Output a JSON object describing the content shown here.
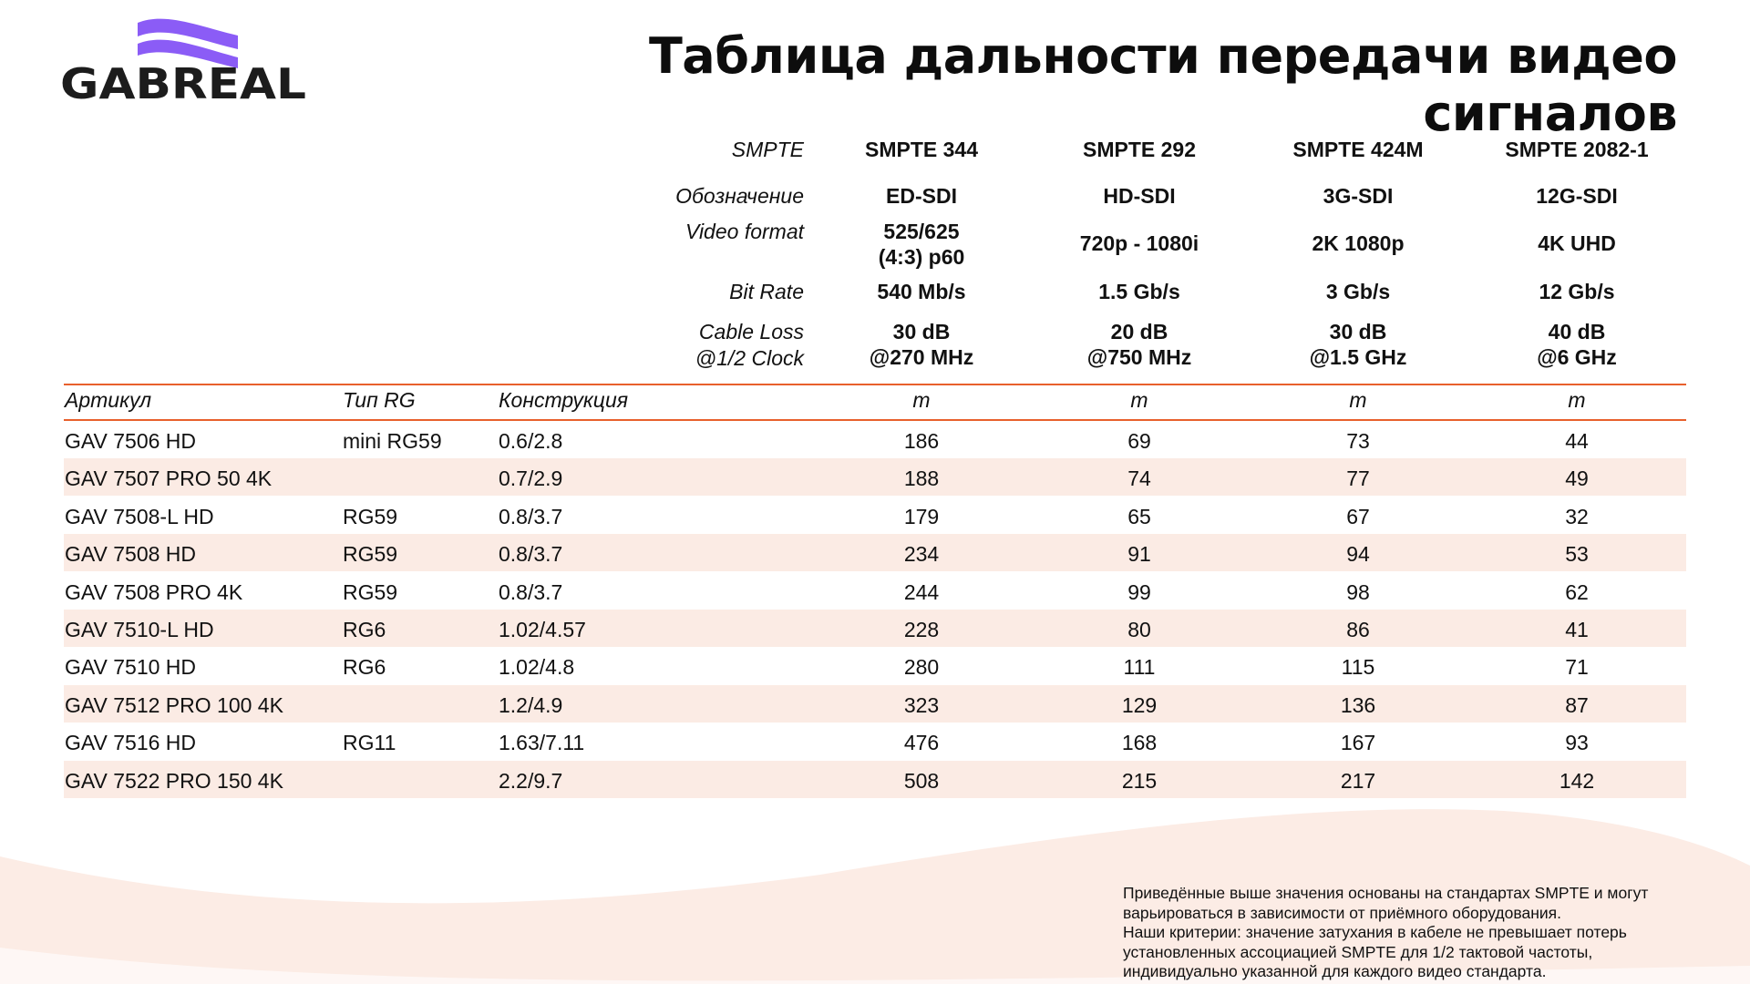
{
  "brand": {
    "name": "GABREAL",
    "wave_color": "#8b5cf6"
  },
  "title": "Таблица дальности передачи видео сигналов",
  "accent": "#e8602c",
  "row_tint": "#fbebe4",
  "header_rows": [
    {
      "label": "SMPTE",
      "values": [
        "SMPTE 344",
        "SMPTE 292",
        "SMPTE 424M",
        "SMPTE 2082-1"
      ]
    },
    {
      "label": "Обозначение",
      "values": [
        "ED-SDI",
        "HD-SDI",
        "3G-SDI",
        "12G-SDI"
      ]
    },
    {
      "label": "Video format",
      "values": [
        "525/625\n(4:3) p60",
        "720p - 1080i",
        "2K 1080p",
        "4K UHD"
      ]
    },
    {
      "label": "Bit Rate",
      "values": [
        "540 Mb/s",
        "1.5 Gb/s",
        "3 Gb/s",
        "12 Gb/s"
      ]
    },
    {
      "label": "Cable Loss\n@1/2 Clock",
      "values": [
        "30 dB\n@270 MHz",
        "20 dB\n@750 MHz",
        "30 dB\n@1.5 GHz",
        "40 dB\n@6 GHz"
      ]
    }
  ],
  "columns": {
    "article": "Артикул",
    "rg": "Тип RG",
    "construction": "Конструкция",
    "units": [
      "m",
      "m",
      "m",
      "m"
    ]
  },
  "rows": [
    {
      "article": "GAV 7506 HD",
      "rg": "mini RG59",
      "construction": "0.6/2.8",
      "values": [
        "186",
        "69",
        "73",
        "44"
      ]
    },
    {
      "article": "GAV 7507 PRO 50 4K",
      "rg": "",
      "construction": "0.7/2.9",
      "values": [
        "188",
        "74",
        "77",
        "49"
      ]
    },
    {
      "article": "GAV 7508-L HD",
      "rg": "RG59",
      "construction": "0.8/3.7",
      "values": [
        "179",
        "65",
        "67",
        "32"
      ]
    },
    {
      "article": "GAV 7508 HD",
      "rg": "RG59",
      "construction": "0.8/3.7",
      "values": [
        "234",
        "91",
        "94",
        "53"
      ]
    },
    {
      "article": "GAV 7508 PRO 4K",
      "rg": "RG59",
      "construction": "0.8/3.7",
      "values": [
        "244",
        "99",
        "98",
        "62"
      ]
    },
    {
      "article": "GAV 7510-L HD",
      "rg": "RG6",
      "construction": "1.02/4.57",
      "values": [
        "228",
        "80",
        "86",
        "41"
      ]
    },
    {
      "article": "GAV 7510 HD",
      "rg": "RG6",
      "construction": "1.02/4.8",
      "values": [
        "280",
        "111",
        "115",
        "71"
      ]
    },
    {
      "article": "GAV 7512 PRO 100 4K",
      "rg": "",
      "construction": "1.2/4.9",
      "values": [
        "323",
        "129",
        "136",
        "87"
      ]
    },
    {
      "article": "GAV 7516 HD",
      "rg": "RG11",
      "construction": "1.63/7.11",
      "values": [
        "476",
        "168",
        "167",
        "93"
      ]
    },
    {
      "article": "GAV 7522 PRO 150 4K",
      "rg": "",
      "construction": "2.2/9.7",
      "values": [
        "508",
        "215",
        "217",
        "142"
      ]
    }
  ],
  "footer": [
    "Приведённые выше значения основаны на стандартах SMPTE и могут",
    "варьироваться в зависимости от приёмного оборудования.",
    "Наши критерии: значение затухания в кабеле не превышает потерь",
    "установленных ассоциацией SMPTE для 1/2 тактовой частоты,",
    "индивидуально указанной для каждого видео стандарта."
  ]
}
